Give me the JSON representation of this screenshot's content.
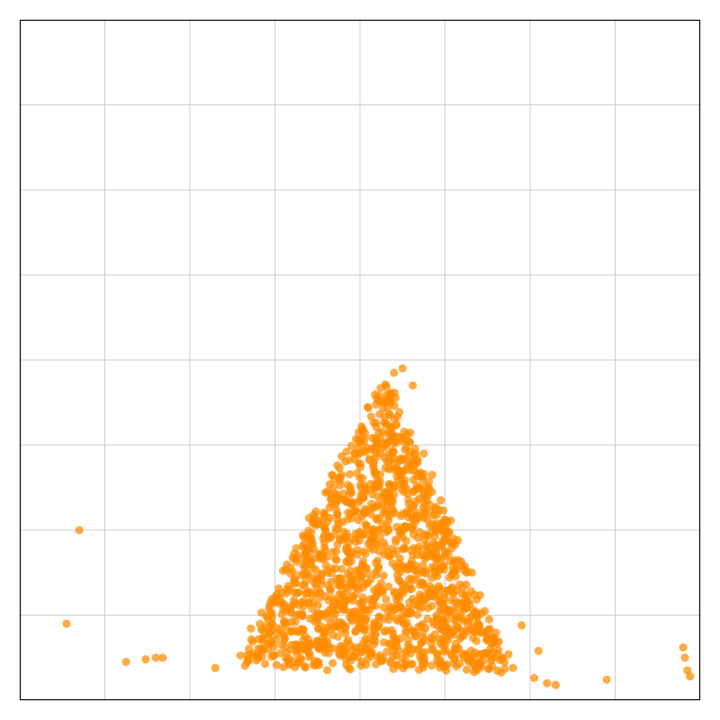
{
  "chart_data": {
    "type": "scatter",
    "title": "",
    "xlabel": "",
    "ylabel": "",
    "xlim": [
      0,
      8
    ],
    "ylim": [
      0,
      8
    ],
    "grid": true,
    "tick_labels_visible": false,
    "marker_color": "#ff8c00",
    "generated_core": {
      "count": 1500,
      "description_shape": "triangle",
      "apex": [
        4.3,
        3.8
      ],
      "base_left": [
        2.5,
        0.4
      ],
      "base_right": [
        5.8,
        0.35
      ]
    },
    "series": [
      {
        "points": [
          [
            0.7,
            2.0
          ],
          [
            0.55,
            0.9
          ],
          [
            1.25,
            0.45
          ],
          [
            1.48,
            0.48
          ],
          [
            1.6,
            0.5
          ],
          [
            1.68,
            0.5
          ],
          [
            2.3,
            0.38
          ],
          [
            3.3,
            0.5
          ],
          [
            3.5,
            0.45
          ],
          [
            4.5,
            3.9
          ],
          [
            4.4,
            3.85
          ],
          [
            4.62,
            3.7
          ],
          [
            4.3,
            3.25
          ],
          [
            4.55,
            3.05
          ],
          [
            4.75,
            2.9
          ],
          [
            4.85,
            2.65
          ],
          [
            4.7,
            2.5
          ],
          [
            4.95,
            2.35
          ],
          [
            5.1,
            1.9
          ],
          [
            5.0,
            1.75
          ],
          [
            5.25,
            1.5
          ],
          [
            5.2,
            1.25
          ],
          [
            5.35,
            0.8
          ],
          [
            5.5,
            0.55
          ],
          [
            5.7,
            0.45
          ],
          [
            5.8,
            0.38
          ],
          [
            5.9,
            0.88
          ],
          [
            6.1,
            0.58
          ],
          [
            6.05,
            0.26
          ],
          [
            6.2,
            0.2
          ],
          [
            6.3,
            0.18
          ],
          [
            6.9,
            0.24
          ],
          [
            7.8,
            0.62
          ],
          [
            7.82,
            0.5
          ],
          [
            7.85,
            0.35
          ],
          [
            7.88,
            0.28
          ]
        ]
      }
    ]
  }
}
